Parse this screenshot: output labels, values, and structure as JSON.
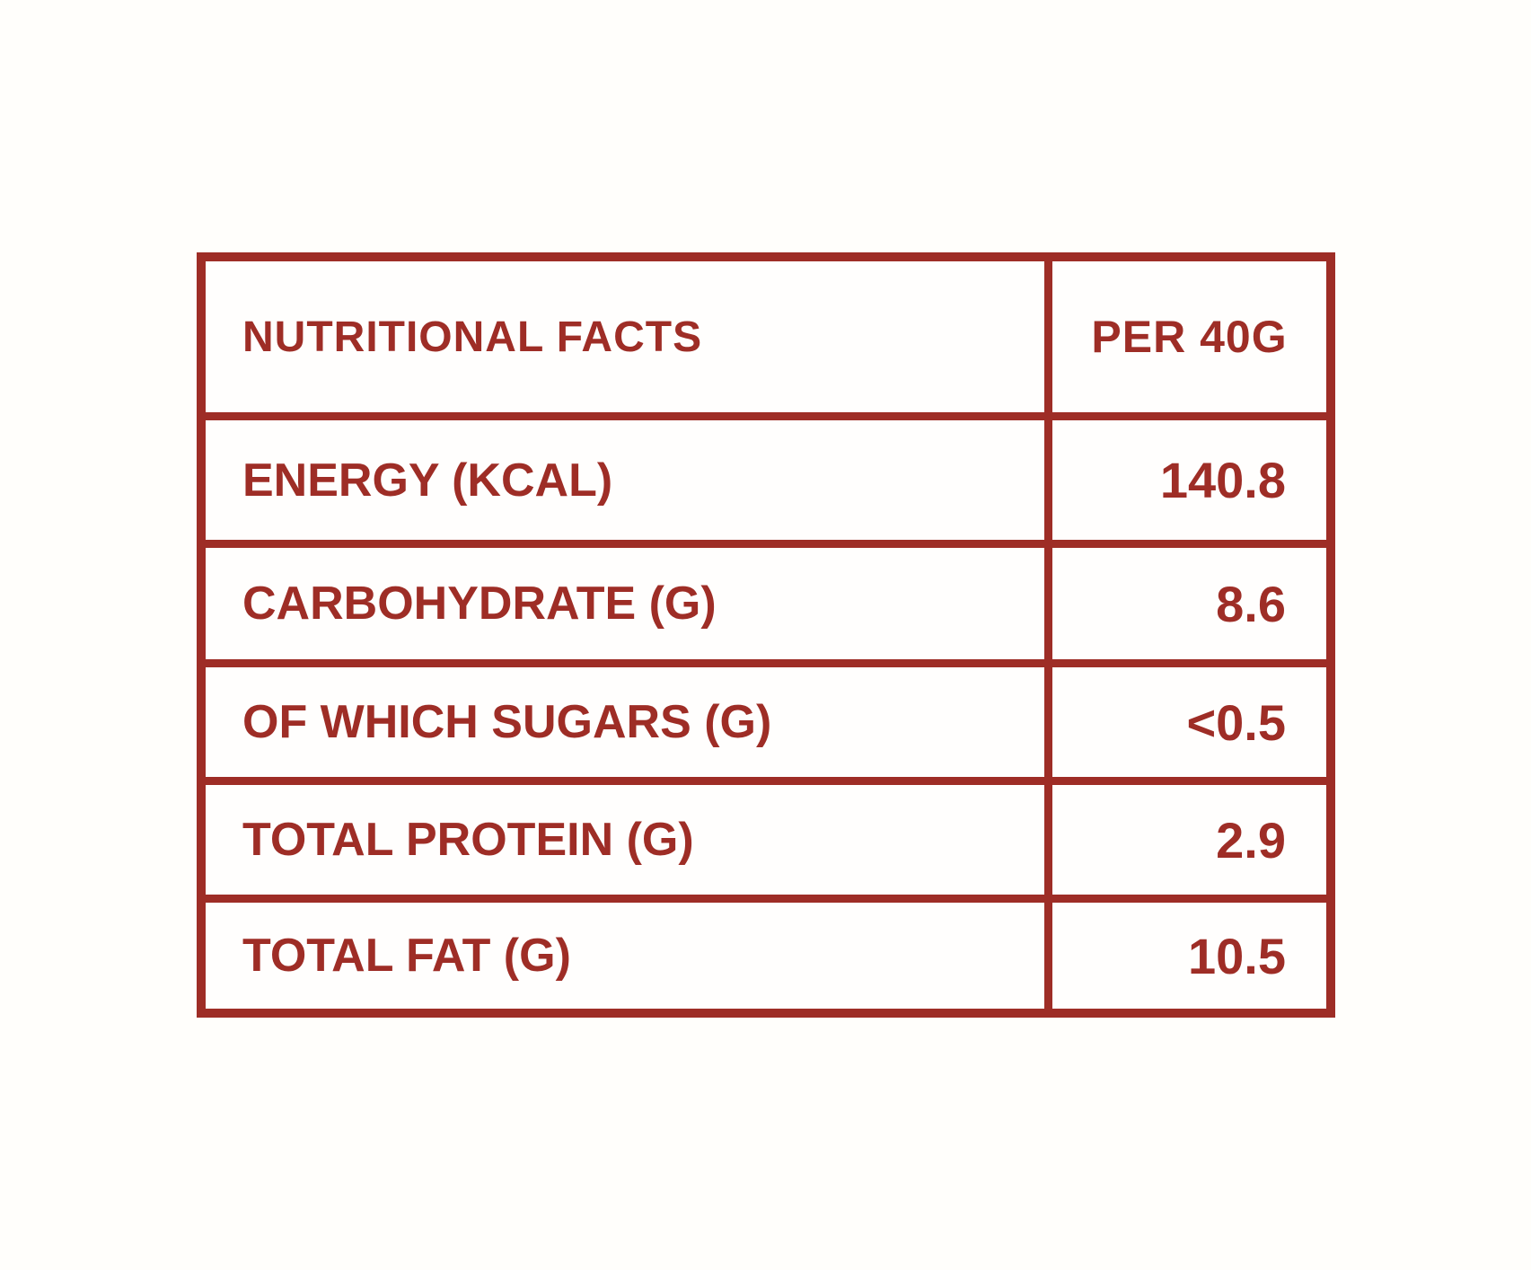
{
  "colors": {
    "accent": "#9E2D26",
    "background": "#FFFEFB"
  },
  "table": {
    "title": "NUTRITIONAL FACTS",
    "serving_header": "PER 40G",
    "rows": [
      {
        "label": "ENERGY (KCAL)",
        "value": "140.8"
      },
      {
        "label": "CARBOHYDRATE (G)",
        "value": "8.6"
      },
      {
        "label": "OF WHICH SUGARS (G)",
        "value": "<0.5"
      },
      {
        "label": "TOTAL PROTEIN (G)",
        "value": "2.9"
      },
      {
        "label": "TOTAL FAT (G)",
        "value": "10.5"
      }
    ]
  },
  "chart_data": {
    "type": "table",
    "title": "NUTRITIONAL FACTS",
    "columns": [
      "NUTRITIONAL FACTS",
      "PER 40G"
    ],
    "categories": [
      "ENERGY (KCAL)",
      "CARBOHYDRATE (G)",
      "OF WHICH SUGARS (G)",
      "TOTAL PROTEIN (G)",
      "TOTAL FAT (G)"
    ],
    "values": [
      "140.8",
      "8.6",
      "<0.5",
      "2.9",
      "10.5"
    ]
  }
}
